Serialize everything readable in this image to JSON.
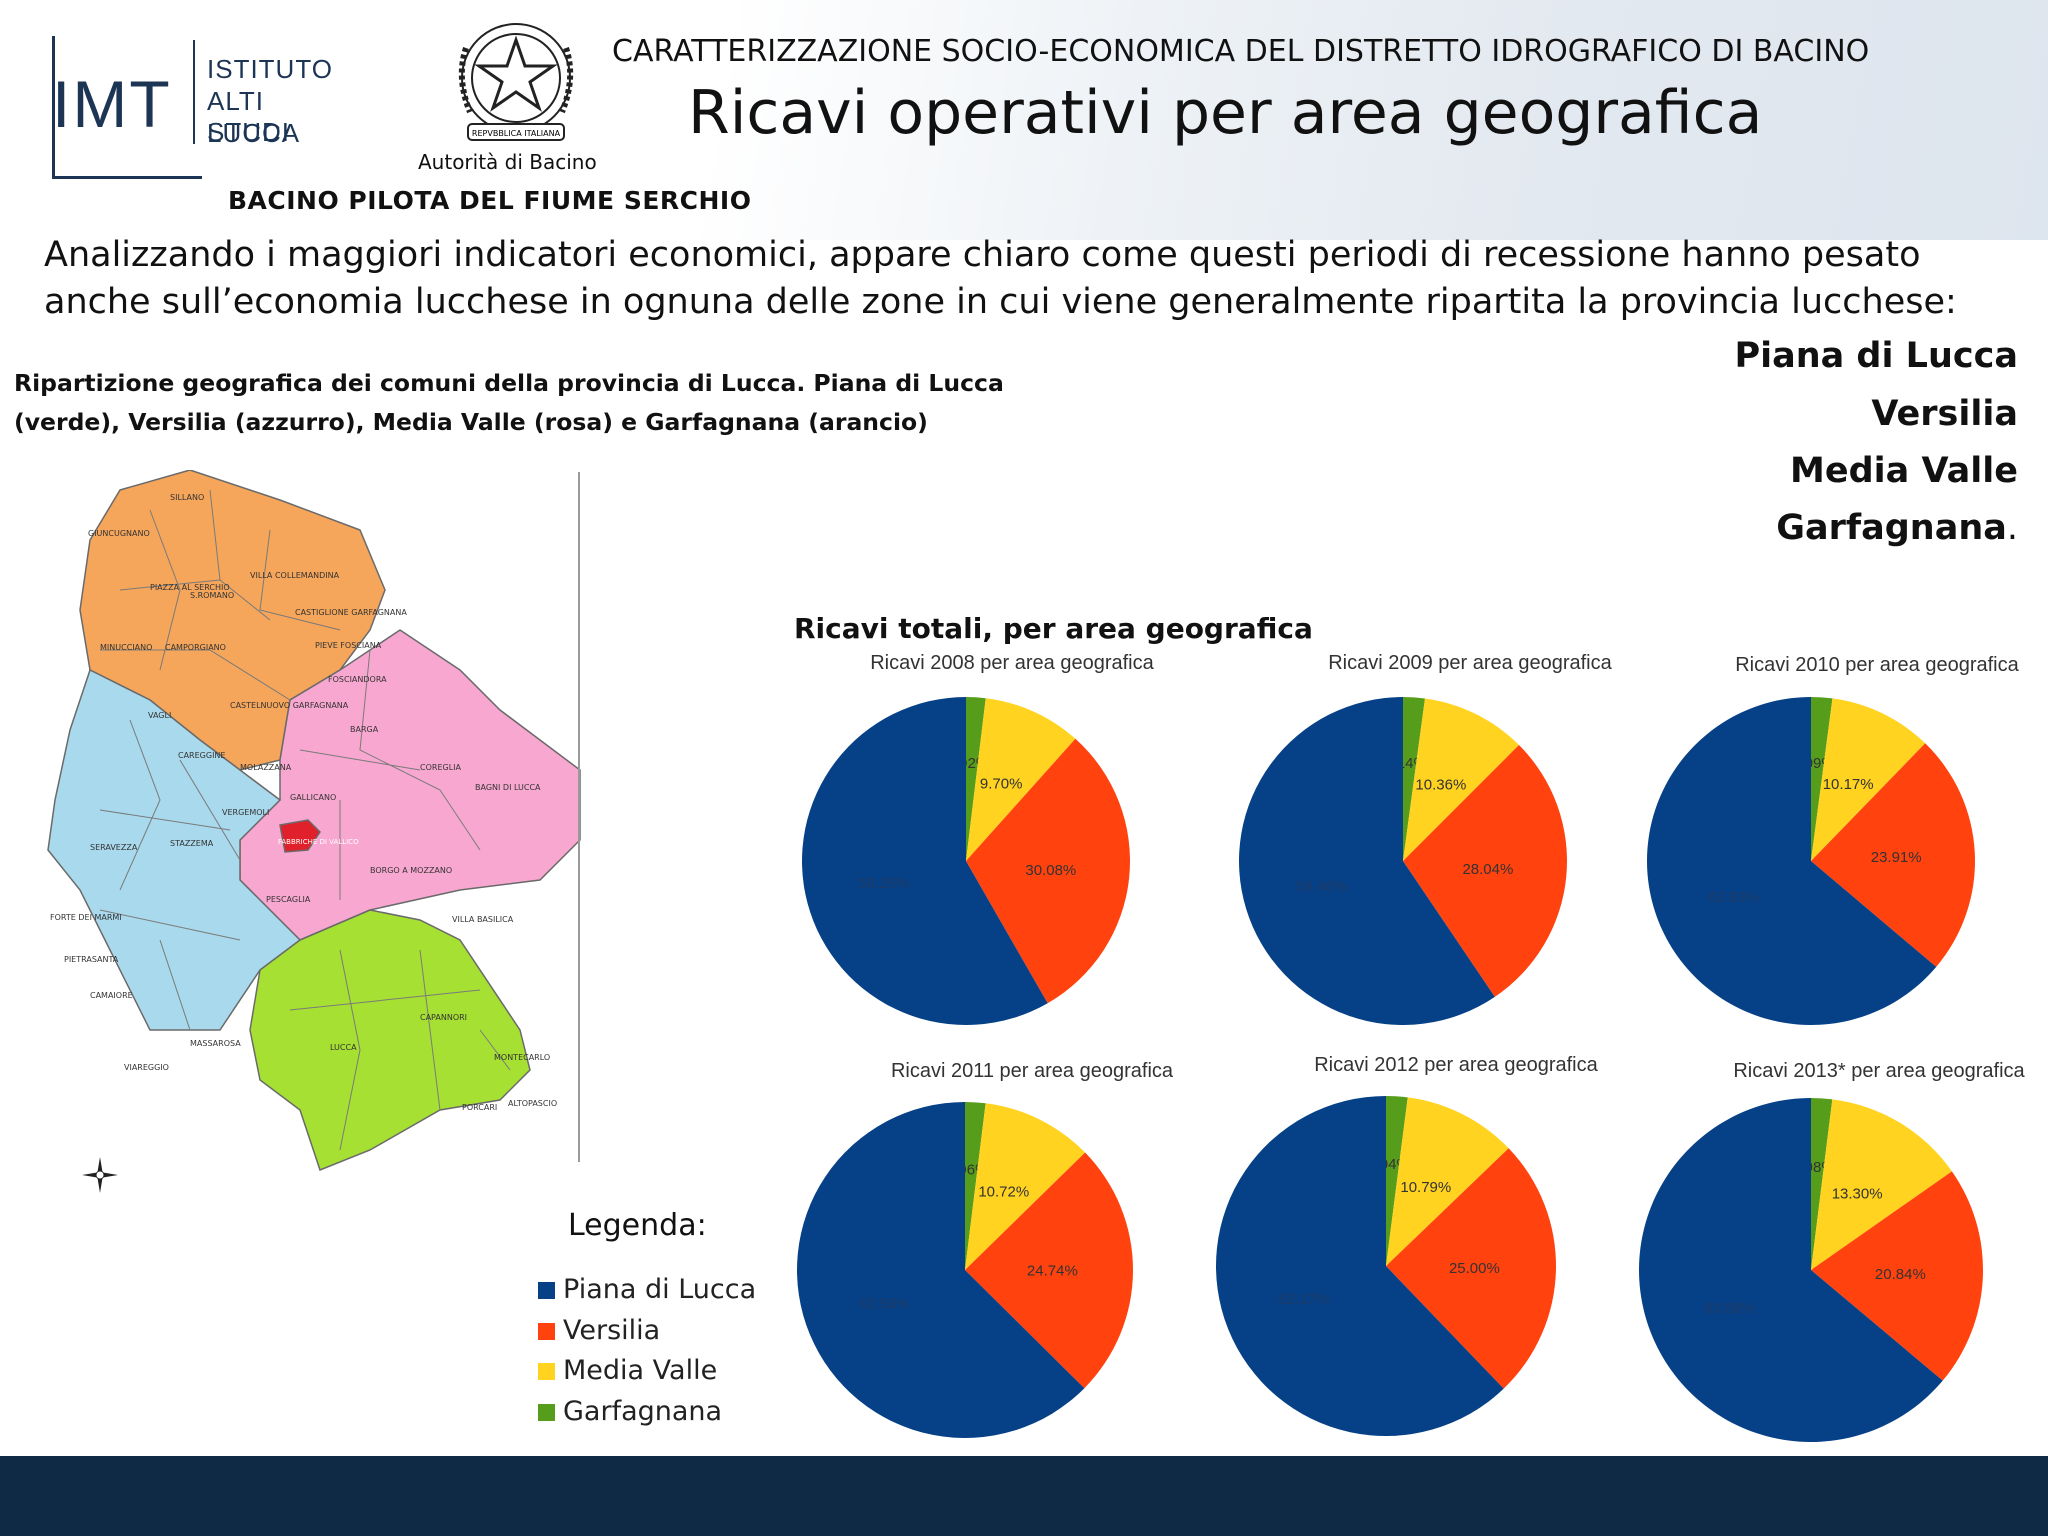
{
  "header": {
    "org_line1": "ISTITUTO",
    "org_line2": "ALTI STUDI",
    "org_line3": "LUCCA",
    "org_abbr": "IMT",
    "emblem_caption": "Autorità di Bacino",
    "emblem_motto": "REPVBBLICA ITALIANA",
    "subtitle": "BACINO PILOTA DEL FIUME SERCHIO",
    "top_line": "CARATTERIZZAZIONE SOCIO-ECONOMICA DEL DISTRETTO IDROGRAFICO DI BACINO",
    "title": "Ricavi operativi per area geografica"
  },
  "intro": {
    "line1": "Analizzando i maggiori indicatori economici, appare chiaro come questi periodi di recessione hanno pesato",
    "line2": "anche sull’economia lucchese in ognuna delle zone in cui viene generalmente ripartita la provincia lucchese:"
  },
  "areas": {
    "a1": "Piana di Lucca",
    "a2": "Versilia",
    "a3": "Media Valle",
    "a4": "Garfagnana",
    "a4_suffix": "."
  },
  "map": {
    "caption_line1": "Ripartizione geografica dei comuni della provincia di Lucca. Piana di Lucca",
    "caption_line2": "(verde), Versilia (azzurro), Media Valle (rosa) e Garfagnana (arancio)",
    "labels": [
      "GIUNCUGNANO",
      "SILLANO",
      "VILLA COLLEMANDINA",
      "PIAZZA AL SERCHIO",
      "S.ROMANO",
      "CASTIGLIONE GARFAGNANA",
      "MINUCCIANO",
      "CAMPORGIANO",
      "PIEVE FOSCIANA",
      "VAGLI",
      "CASTELNUOVO GARFAGNANA",
      "FOSCIANDORA",
      "CAREGGINE",
      "BARGA",
      "MOLAZZANA",
      "COREGLIA",
      "BAGNI DI LUCCA",
      "GALLICANO",
      "VERGEMOLI",
      "STAZZEMA",
      "SERAVEZZA",
      "FABBRICHE DI VALLICO",
      "BORGO A MOZZANO",
      "PESCAGLIA",
      "FORTE DEI MARMI",
      "VILLA BASILICA",
      "PIETRASANTA",
      "CAMAIORE",
      "CAPANNORI",
      "LUCCA",
      "MASSAROSA",
      "MONTECARLO",
      "VIAREGGIO",
      "PORCARI",
      "ALTOPASCIO"
    ]
  },
  "legend": {
    "title": "Legenda:",
    "items": [
      "Piana di Lucca",
      "Versilia",
      "Media Valle",
      "Garfagnana"
    ]
  },
  "colors": {
    "piana": "#064187",
    "versilia": "#ff420e",
    "media_valle": "#ffd320",
    "garfagnana": "#579d1c",
    "map_orange": "#f5a65b",
    "map_pink": "#f8a8d0",
    "map_blue": "#a9d9ec",
    "map_green": "#a5e033",
    "footer": "#0f2a44"
  },
  "chart_data": {
    "type": "pie",
    "title": "Ricavi totali, per area geografica",
    "categories": [
      "Piana di Lucca",
      "Versilia",
      "Media Valle",
      "Garfagnana"
    ],
    "charts": [
      {
        "title": "Ricavi 2008 per area geografica",
        "values": [
          58.29,
          30.08,
          9.7,
          1.92
        ],
        "labels": [
          "58.29%",
          "30.08%",
          "9.70%",
          "1.92%"
        ]
      },
      {
        "title": "Ricavi 2009 per area geografica",
        "values": [
          59.46,
          28.04,
          10.36,
          2.14
        ],
        "labels": [
          "59.46%",
          "28.04%",
          "10.36%",
          "2.14%"
        ]
      },
      {
        "title": "Ricavi 2010 per area geografica",
        "values": [
          63.83,
          23.91,
          10.17,
          2.09
        ],
        "labels": [
          "63.83%",
          "23.91%",
          "10.17%",
          "2.09%"
        ]
      },
      {
        "title": "Ricavi 2011 per area geografica",
        "values": [
          62.58,
          24.74,
          10.72,
          1.96
        ],
        "labels": [
          "62.58%",
          "24.74%",
          "10.72%",
          "1.96%"
        ]
      },
      {
        "title": "Ricavi 2012 per area geografica",
        "values": [
          62.17,
          25.0,
          10.79,
          2.04
        ],
        "labels": [
          "62.17%",
          "25.00%",
          "10.79%",
          "2.04%"
        ]
      },
      {
        "title": "Ricavi 2013* per area geografica",
        "values": [
          63.88,
          20.84,
          13.3,
          1.98
        ],
        "labels": [
          "63.88%",
          "20.84%",
          "13.30%",
          "1.98%"
        ]
      }
    ]
  }
}
